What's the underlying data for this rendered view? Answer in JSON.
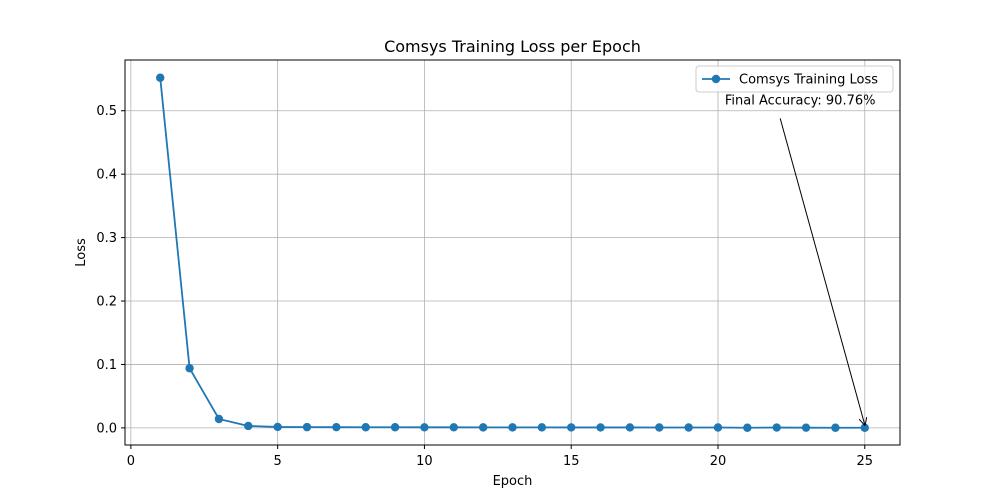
{
  "chart_data": {
    "type": "line",
    "title": "Comsys Training Loss per Epoch",
    "xlabel": "Epoch",
    "ylabel": "Loss",
    "xlim": [
      -0.2,
      26.2
    ],
    "ylim": [
      -0.027,
      0.58
    ],
    "xticks": [
      0,
      5,
      10,
      15,
      20,
      25
    ],
    "yticks": [
      0.0,
      0.1,
      0.2,
      0.3,
      0.4,
      0.5
    ],
    "xtick_labels": [
      "0",
      "5",
      "10",
      "15",
      "20",
      "25"
    ],
    "ytick_labels": [
      "0.0",
      "0.1",
      "0.2",
      "0.3",
      "0.4",
      "0.5"
    ],
    "grid": true,
    "legend": {
      "placement": "upper right"
    },
    "series": [
      {
        "name": "Comsys Training Loss",
        "color": "#1f77b4",
        "marker": "circle",
        "x": [
          1,
          2,
          3,
          4,
          5,
          6,
          7,
          8,
          9,
          10,
          11,
          12,
          13,
          14,
          15,
          16,
          17,
          18,
          19,
          20,
          21,
          22,
          23,
          24,
          25
        ],
        "values": [
          0.552,
          0.094,
          0.014,
          0.003,
          0.0015,
          0.0012,
          0.0011,
          0.001,
          0.001,
          0.0009,
          0.0009,
          0.0008,
          0.0008,
          0.0008,
          0.0007,
          0.0007,
          0.0007,
          0.0006,
          0.0006,
          0.0006,
          0.0002,
          0.0005,
          0.0003,
          0.0002,
          0.0002
        ]
      }
    ],
    "annotations": [
      {
        "text": "Final Accuracy: 90.76%",
        "x": 25,
        "y": 0.0002,
        "text_at": [
          22.8,
          0.51
        ]
      }
    ]
  }
}
